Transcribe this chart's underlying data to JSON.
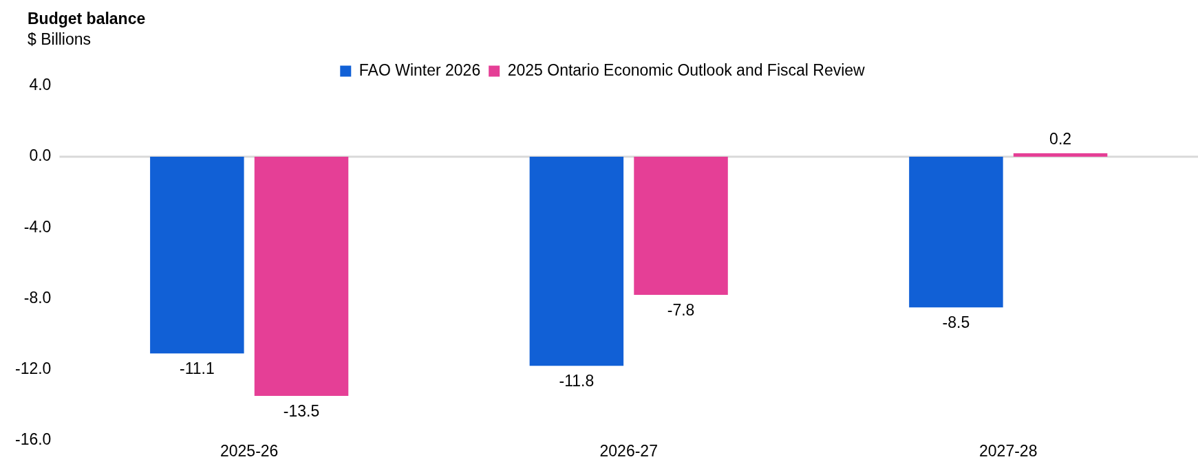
{
  "chart_data": {
    "type": "bar",
    "title": "Budget balance",
    "ylabel": "$ Billions",
    "categories": [
      "2025-26",
      "2026-27",
      "2027-28"
    ],
    "series": [
      {
        "name": "FAO Winter 2026",
        "color": "#1160d6",
        "values": [
          -11.1,
          -11.8,
          -8.5
        ]
      },
      {
        "name": "2025 Ontario Economic Outlook and Fiscal Review",
        "color": "#e53f96",
        "values": [
          -13.5,
          -7.8,
          0.2
        ]
      }
    ],
    "ylim": [
      -16,
      4
    ],
    "yticks": [
      {
        "value": 4,
        "label": "4.0"
      },
      {
        "value": 0,
        "label": "0.0"
      },
      {
        "value": -4,
        "label": "-4.0"
      },
      {
        "value": -8,
        "label": "-8.0"
      },
      {
        "value": -12,
        "label": "-12.0"
      },
      {
        "value": -16,
        "label": "-16.0"
      }
    ],
    "ref_lines": [
      {
        "axis": "y",
        "value": 0,
        "color": "#d9d9d9"
      }
    ],
    "grid": false,
    "legend": "top",
    "data_labels": true
  }
}
